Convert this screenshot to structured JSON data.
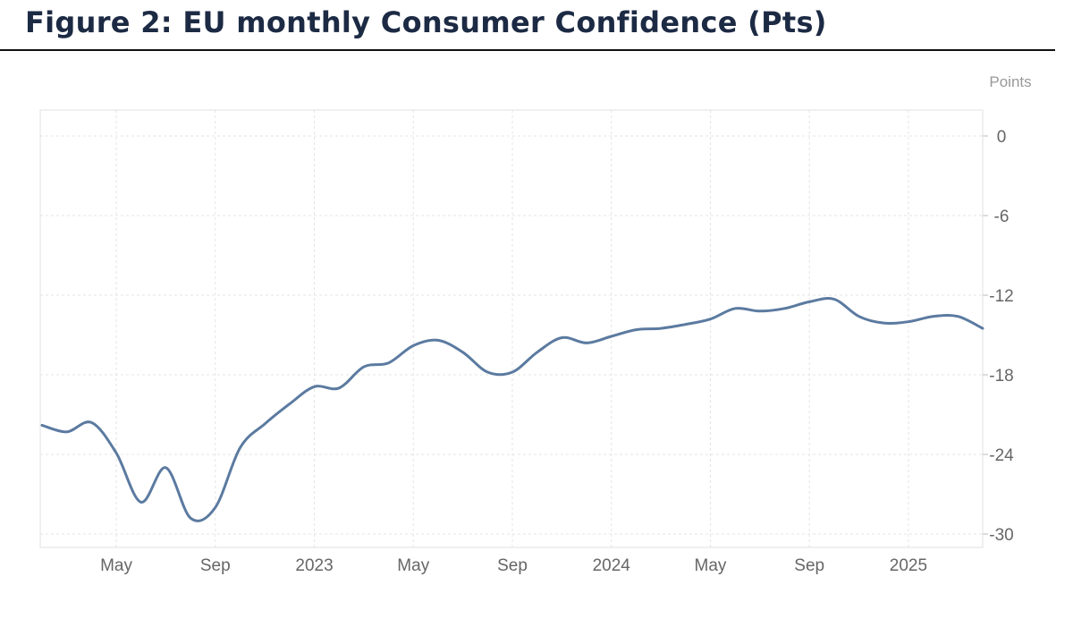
{
  "header": {
    "title": "Figure 2: EU monthly Consumer Confidence (Pts)"
  },
  "chart_data": {
    "type": "line",
    "title": "Figure 2: EU monthly Consumer Confidence (Pts)",
    "ylabel": "Points",
    "xlabel": "",
    "ylim": [
      -31,
      2
    ],
    "y_ticks": [
      0,
      -6,
      -12,
      -18,
      -24,
      -30
    ],
    "x_ticks": [
      {
        "label": "May",
        "date": "2022-05"
      },
      {
        "label": "Sep",
        "date": "2022-09"
      },
      {
        "label": "2023",
        "date": "2023-01"
      },
      {
        "label": "May",
        "date": "2023-05"
      },
      {
        "label": "Sep",
        "date": "2023-09"
      },
      {
        "label": "2024",
        "date": "2024-01"
      },
      {
        "label": "May",
        "date": "2024-05"
      },
      {
        "label": "Sep",
        "date": "2024-09"
      },
      {
        "label": "2025",
        "date": "2025-01"
      }
    ],
    "grid": true,
    "series": [
      {
        "color": "#5b7aa0",
        "points": [
          {
            "x": "2022-02",
            "y": -21.8
          },
          {
            "x": "2022-03",
            "y": -22.3
          },
          {
            "x": "2022-04",
            "y": -21.6
          },
          {
            "x": "2022-05",
            "y": -23.9
          },
          {
            "x": "2022-06",
            "y": -27.6
          },
          {
            "x": "2022-07",
            "y": -25.0
          },
          {
            "x": "2022-08",
            "y": -28.8
          },
          {
            "x": "2022-09",
            "y": -28.0
          },
          {
            "x": "2022-10",
            "y": -23.5
          },
          {
            "x": "2022-11",
            "y": -21.7
          },
          {
            "x": "2022-12",
            "y": -20.2
          },
          {
            "x": "2023-01",
            "y": -18.9
          },
          {
            "x": "2023-02",
            "y": -19.0
          },
          {
            "x": "2023-03",
            "y": -17.4
          },
          {
            "x": "2023-04",
            "y": -17.1
          },
          {
            "x": "2023-05",
            "y": -15.8
          },
          {
            "x": "2023-06",
            "y": -15.4
          },
          {
            "x": "2023-07",
            "y": -16.3
          },
          {
            "x": "2023-08",
            "y": -17.8
          },
          {
            "x": "2023-09",
            "y": -17.8
          },
          {
            "x": "2023-10",
            "y": -16.3
          },
          {
            "x": "2023-11",
            "y": -15.2
          },
          {
            "x": "2023-12",
            "y": -15.6
          },
          {
            "x": "2024-01",
            "y": -15.1
          },
          {
            "x": "2024-02",
            "y": -14.6
          },
          {
            "x": "2024-03",
            "y": -14.5
          },
          {
            "x": "2024-04",
            "y": -14.2
          },
          {
            "x": "2024-05",
            "y": -13.8
          },
          {
            "x": "2024-06",
            "y": -13.0
          },
          {
            "x": "2024-07",
            "y": -13.2
          },
          {
            "x": "2024-08",
            "y": -13.0
          },
          {
            "x": "2024-09",
            "y": -12.5
          },
          {
            "x": "2024-10",
            "y": -12.3
          },
          {
            "x": "2024-11",
            "y": -13.6
          },
          {
            "x": "2024-12",
            "y": -14.1
          },
          {
            "x": "2025-01",
            "y": -14.0
          },
          {
            "x": "2025-02",
            "y": -13.6
          },
          {
            "x": "2025-03",
            "y": -13.6
          },
          {
            "x": "2025-04",
            "y": -14.5
          }
        ]
      }
    ]
  }
}
